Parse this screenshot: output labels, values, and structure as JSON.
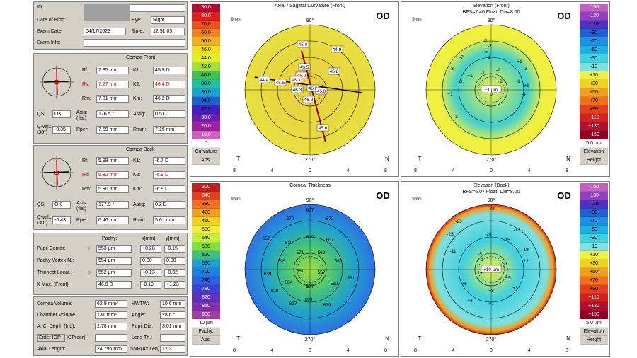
{
  "patient": {
    "id_label": "ID:",
    "dob_label": "Date of Birth:",
    "eye_label": "Eye:",
    "eye_value": "Right",
    "exam_date_label": "Exam Date:",
    "exam_date_value": "04/17/2023",
    "time_label": "Time:",
    "time_value": "12:51:05",
    "exam_info_label": "Exam Info:"
  },
  "cornea_front": {
    "title": "Cornea Front",
    "rf_label": "Rf:",
    "rf": "7.35 mm",
    "rs_label": "Rs:",
    "rs": "7.27 mm",
    "rm_label": "Rm:",
    "rm": "7.31 mm",
    "k1_label": "K1:",
    "k1": "45.9 D",
    "k2_label": "K2:",
    "k2": "46.4 D",
    "km_label": "Km:",
    "km": "46.2 D",
    "qs_label": "QS:",
    "qs": "OK",
    "axis_label": "Axis: (flat)",
    "axis": "176.5 °",
    "astig_label": "Astig:",
    "astig": "0.5 D",
    "qval_label": "Q-val.: (30°)",
    "qval": "-0.35",
    "rper_label": "Rper:",
    "rper": "7.59 mm",
    "rmin_label": "Rmin:",
    "rmin": "7.19 mm"
  },
  "cornea_back": {
    "title": "Cornea Back",
    "rf_label": "Rf:",
    "rf": "5.98 mm",
    "rs_label": "Rs:",
    "rs": "5.82 mm",
    "rm_label": "Rm:",
    "rm": "5.90 mm",
    "k1_label": "K1:",
    "k1": "-6.7 D",
    "k2_label": "K2:",
    "k2": "-6.9 D",
    "km_label": "Km:",
    "km": "-6.8 D",
    "qs_label": "QS:",
    "qs": "OK",
    "axis_label": "Axis: (flat)",
    "axis": "177.9 °",
    "astig_label": "Astig:",
    "astig": "0.2 D",
    "qval_label": "Q-val.: (30°)",
    "qval": "-0.43",
    "rper_label": "Rper:",
    "rper": "6.46 mm",
    "rmin_label": "Rmin:",
    "rmin": "5.61 mm"
  },
  "pachy": {
    "col_pachy": "Pachy:",
    "col_x": "x[mm]",
    "col_y": "y[mm]",
    "rows": [
      {
        "label": "Pupil Center:",
        "sym": "+",
        "pachy": "553 µm",
        "x": "+0.28",
        "y": "-0.15"
      },
      {
        "label": "Pachy Vertex N.:",
        "sym": "",
        "pachy": "554 µm",
        "x": "0.00",
        "y": "0.00"
      },
      {
        "label": "Thinnest Locat.:",
        "sym": "○",
        "pachy": "552 µm",
        "x": "+0.13",
        "y": "-0.32"
      },
      {
        "label": "K Max. (Front):",
        "sym": "",
        "pachy": "46.9 D",
        "x": "-0.19",
        "y": "+1.23"
      }
    ]
  },
  "misc": {
    "cornea_volume_label": "Cornea Volume:",
    "cornea_volume": "62.9 mm³",
    "hwtw_label": "HWTW:",
    "hwtw": "10.6 mm",
    "chamber_volume_label": "Chamber Volume:",
    "chamber_volume": "131 mm³",
    "angle_label": "Angle:",
    "angle": "28.6 °",
    "acd_label": "A. C. Depth (Int.):",
    "acd": "2.78 mm",
    "pupil_dia_label": "Pupil Dia:",
    "pupil_dia": "3.01 mm",
    "enter_iop": "Enter IOP",
    "iop_label": "IOP(cor):",
    "lens_label": "Lens Th.:",
    "axial_label": "Axial Length:",
    "axial": "24.796 mm",
    "snr_label": "SNR(Ax.Len):",
    "snr": "12.3"
  },
  "maps": {
    "curvature": {
      "title": "Axial / Sagittal Curvature (Front)",
      "eye": "OD",
      "unit": "D",
      "scale_name": "Curvature",
      "scale_mode": "Abs.",
      "scale": [
        "90.0",
        "80.0",
        "70.0",
        "60.0",
        "50.0",
        "46.0",
        "44.0",
        "42.0",
        "40.0",
        "38.0",
        "36.0",
        "34.0",
        "32.0",
        "30.0",
        "20.0",
        "10.0"
      ],
      "scale_colors": [
        "#b01030",
        "#e02020",
        "#f05020",
        "#f08020",
        "#f0b020",
        "#f0e020",
        "#e0f020",
        "#a0e040",
        "#40c060",
        "#20c0a0",
        "#20a0d0",
        "#2060d0",
        "#4020c0",
        "#7020b0",
        "#a020a0",
        "#d060c0"
      ],
      "values": [
        "45.0",
        "44.9",
        "46.5",
        "46.9",
        "45.8",
        "44.4",
        "45.5",
        "46.3",
        "46.6",
        "45.8",
        "46.2",
        "45.6",
        "46.3"
      ],
      "zoom": "9mm",
      "axis_top": "90°",
      "axis_bottom": "270°",
      "left": "T",
      "right": "N",
      "bottom_ticks": [
        "8",
        "4",
        "0",
        "4",
        "8"
      ]
    },
    "elev_front": {
      "title": "Elevation (Front)",
      "subtitle": "BFS=7.40 Float, Dia=8.00",
      "eye": "OD",
      "unit": "5.0 µm",
      "scale_name": "Elevation",
      "scale_mode": "Height",
      "scale": [
        "-150",
        "-130",
        "-110",
        "-90",
        "-70",
        "-50",
        "-30",
        "-10",
        "+10",
        "+30",
        "+50",
        "+70",
        "+90",
        "+110",
        "+130",
        "+150"
      ],
      "scale_colors": [
        "#c060c0",
        "#9040c0",
        "#5030c0",
        "#2060d0",
        "#2090e0",
        "#20b0e0",
        "#40d0e0",
        "#80e0e0",
        "#f0f040",
        "#f0d020",
        "#f0a020",
        "#f07020",
        "#e04020",
        "#d02020",
        "#b01030",
        "#900020"
      ],
      "values": [
        "0",
        "-5",
        "-7",
        "-8",
        "-3",
        "+1",
        "-3",
        "0",
        "+2",
        "-1",
        "-1",
        "-3",
        "-4",
        "+1",
        "-1",
        "+1",
        "+1",
        "-2",
        "-7"
      ],
      "center_value": "+1 µm",
      "zoom": "9mm",
      "axis_top": "90°",
      "axis_bottom": "270°",
      "left": "T",
      "right": "N",
      "bottom_ticks": [
        "8",
        "4",
        "0",
        "4",
        "8"
      ]
    },
    "thickness": {
      "title": "Corneal Thickness",
      "eye": "OD",
      "unit": "10 µm",
      "scale_name": "Pachy.",
      "scale_mode": "Abs.",
      "scale": [
        "300",
        "340",
        "380",
        "420",
        "460",
        "500",
        "540",
        "580",
        "620",
        "660",
        "700",
        "740",
        "780",
        "820",
        "860",
        "900"
      ],
      "scale_colors": [
        "#c02020",
        "#e04020",
        "#f07020",
        "#f0a020",
        "#f0d020",
        "#f0f040",
        "#c0f040",
        "#80e040",
        "#40c080",
        "#20a0d0",
        "#2080e0",
        "#3060e0",
        "#4040d0",
        "#6030c0",
        "#8030b0",
        "#a040a0"
      ],
      "values": [
        "677",
        "670",
        "672",
        "657",
        "610",
        "619",
        "607",
        "571",
        "569",
        "595",
        "561",
        "557",
        "589",
        "639",
        "584",
        "582",
        "629",
        "577",
        "600",
        "631",
        "617",
        "629"
      ],
      "zoom": "9mm",
      "axis_top": "90°",
      "axis_bottom": "270°",
      "left": "T",
      "right": "N",
      "bottom_ticks": [
        "8",
        "4",
        "0",
        "4",
        "8"
      ]
    },
    "elev_back": {
      "title": "Elevation (Back)",
      "subtitle": "BFS=6.07 Float, Dia=8.00",
      "eye": "OD",
      "unit": "5.0 µm",
      "scale_name": "Elevation",
      "scale_mode": "Height",
      "scale": [
        "-150",
        "-130",
        "-110",
        "-90",
        "-70",
        "-50",
        "-30",
        "-10",
        "+10",
        "+30",
        "+50",
        "+70",
        "+90",
        "+110",
        "+130",
        "+150"
      ],
      "scale_colors": [
        "#c060c0",
        "#9040c0",
        "#5030c0",
        "#2060d0",
        "#2090e0",
        "#20b0e0",
        "#40d0e0",
        "#80e0e0",
        "#f0f040",
        "#f0d020",
        "#f0a020",
        "#f07020",
        "#e04020",
        "#d02020",
        "#b01030",
        "#900020"
      ],
      "values": [
        "-28",
        "-23",
        "-25",
        "-24",
        "-13",
        "-15",
        "-19",
        "-11",
        "-5",
        "-12",
        "-1",
        "+4",
        "+6",
        "+5",
        "+8",
        "+3",
        "+8",
        "+6",
        "+7"
      ],
      "center_value": "+10 µm",
      "zoom": "9mm",
      "axis_top": "90°",
      "axis_bottom": "270°",
      "left": "T",
      "right": "N",
      "bottom_ticks": [
        "8",
        "4",
        "0",
        "4",
        "8"
      ]
    }
  }
}
